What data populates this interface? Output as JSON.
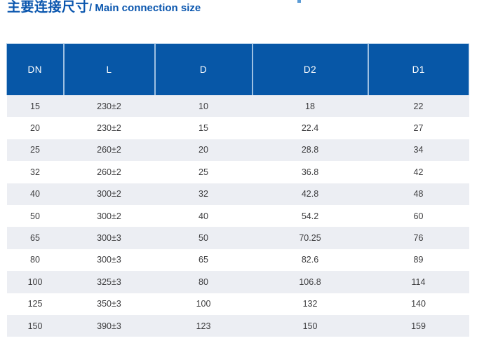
{
  "title": {
    "zh": "主要连接尺寸",
    "en": "/ Main connection size"
  },
  "table": {
    "columns": [
      "DN",
      "L",
      "D",
      "D2",
      "D1"
    ],
    "rows": [
      [
        "15",
        "230±2",
        "10",
        "18",
        "22"
      ],
      [
        "20",
        "230±2",
        "15",
        "22.4",
        "27"
      ],
      [
        "25",
        "260±2",
        "20",
        "28.8",
        "34"
      ],
      [
        "32",
        "260±2",
        "25",
        "36.8",
        "42"
      ],
      [
        "40",
        "300±2",
        "32",
        "42.8",
        "48"
      ],
      [
        "50",
        "300±2",
        "40",
        "54.2",
        "60"
      ],
      [
        "65",
        "300±3",
        "50",
        "70.25",
        "76"
      ],
      [
        "80",
        "300±3",
        "65",
        "82.6",
        "89"
      ],
      [
        "100",
        "325±3",
        "80",
        "106.8",
        "114"
      ],
      [
        "125",
        "350±3",
        "100",
        "132",
        "140"
      ],
      [
        "150",
        "390±3",
        "123",
        "150",
        "159"
      ]
    ]
  },
  "colors": {
    "header_bg": "#0757a7",
    "header_divider": "#9dc0e2",
    "row_alt_bg": "#eceef3",
    "title_blue": "#0a56ae",
    "cell_text": "#3c3c3e"
  }
}
